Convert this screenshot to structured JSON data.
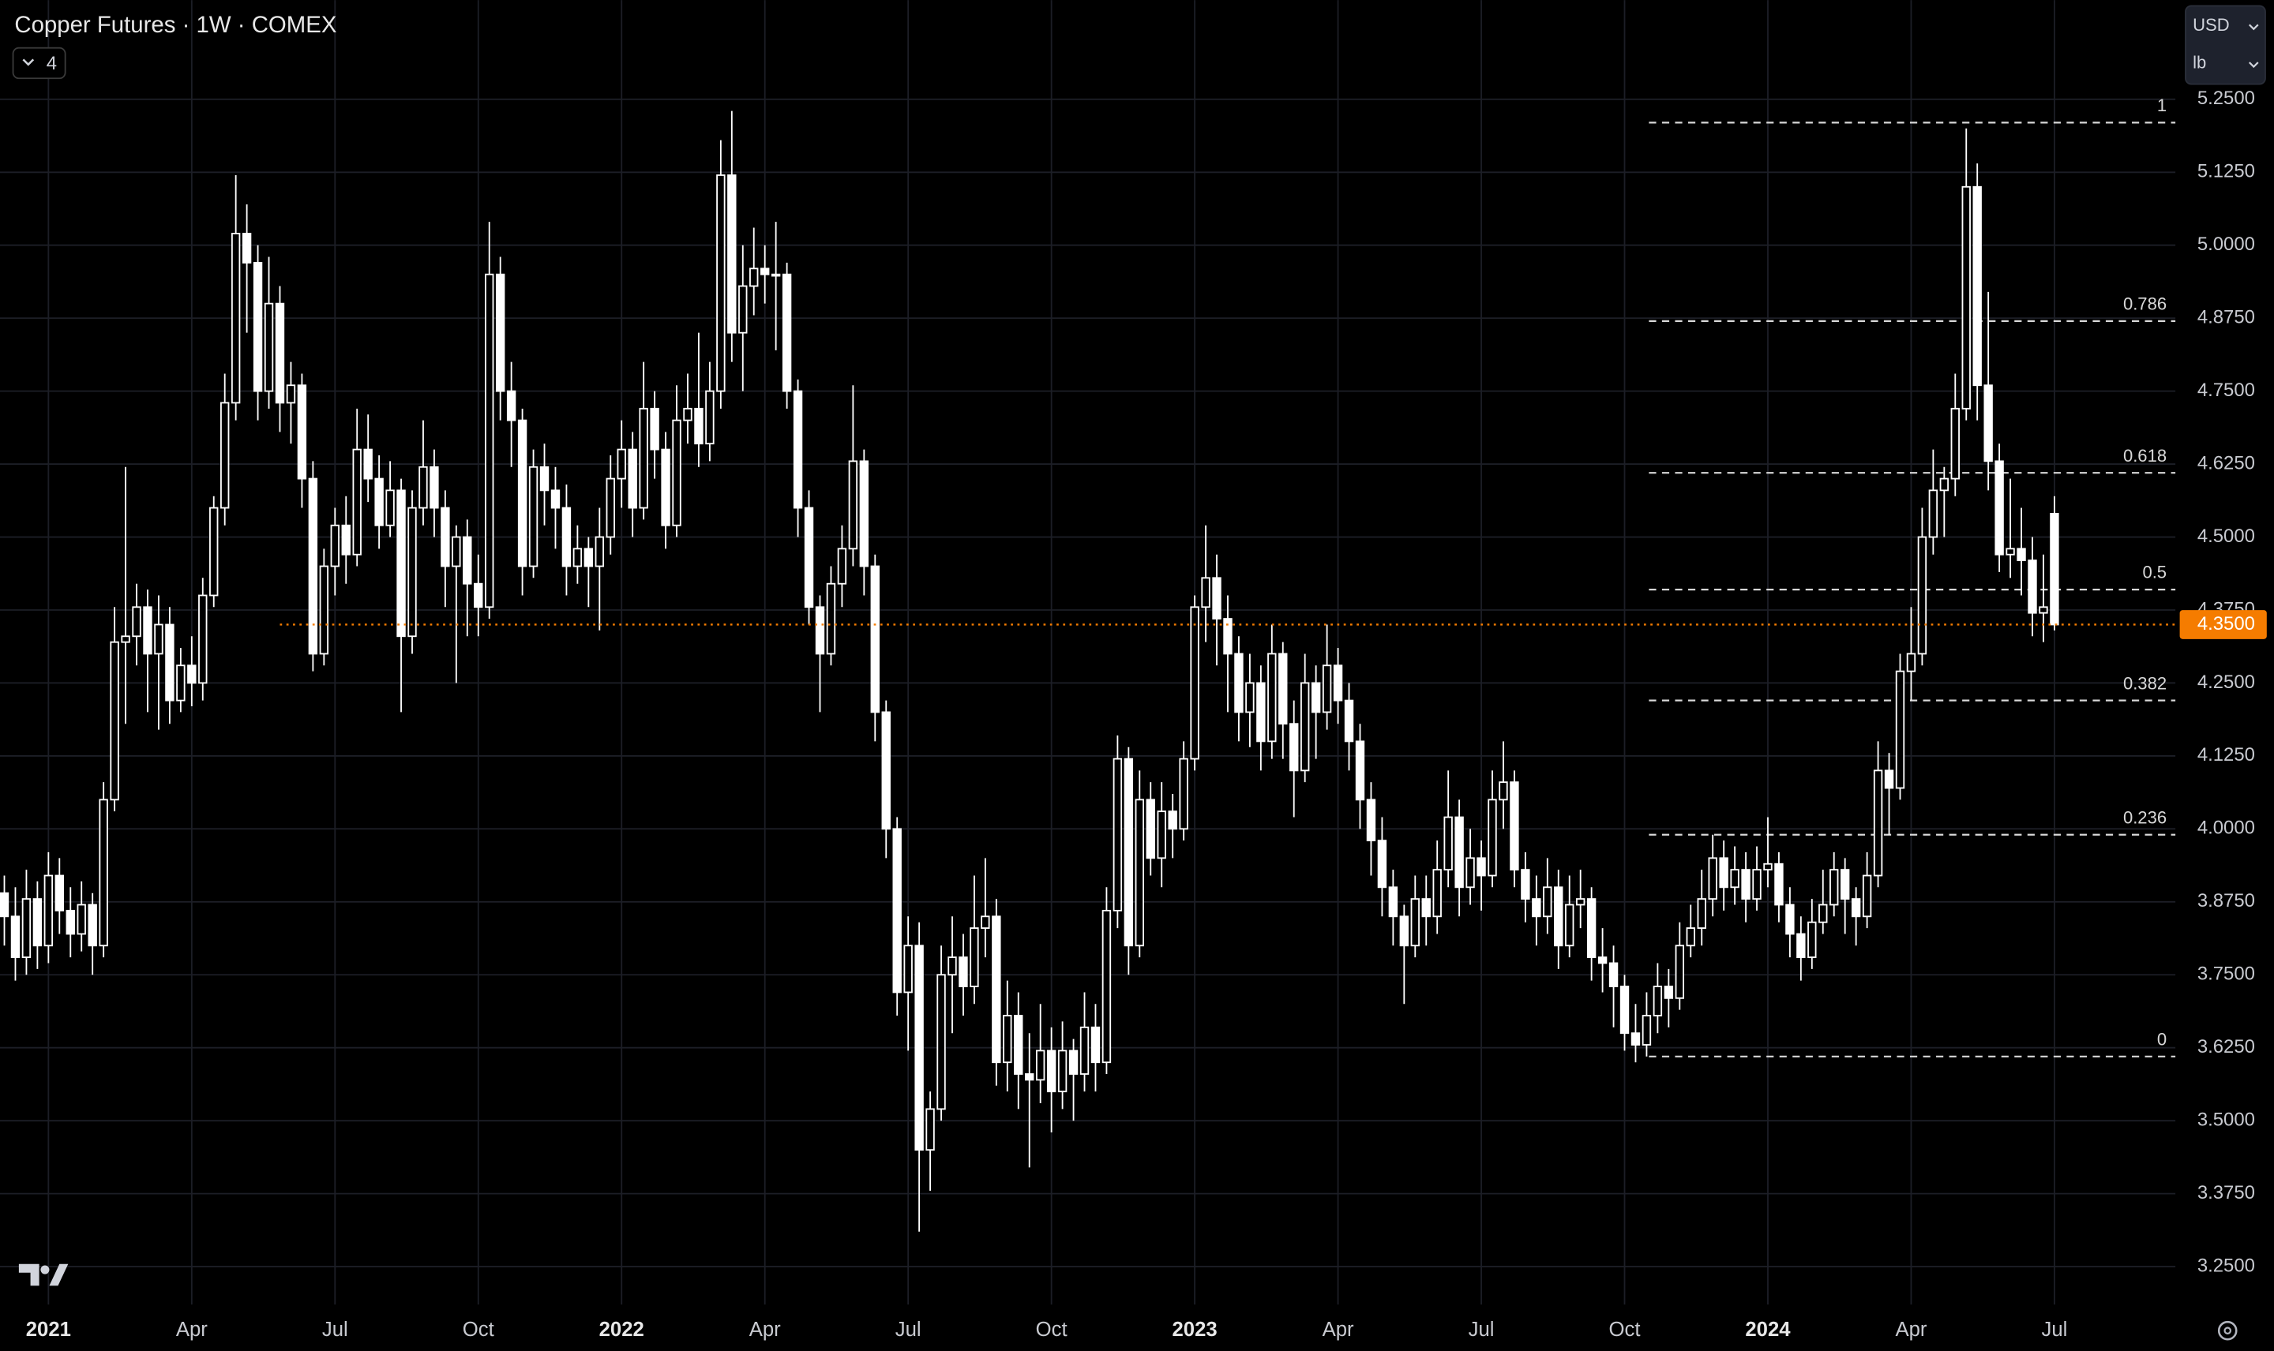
{
  "chart_data": {
    "type": "candlestick",
    "title": "Copper Futures · 1W · COMEX",
    "indicator_count": "4",
    "currency": "USD",
    "unit": "lb",
    "ylim": [
      3.185,
      5.42
    ],
    "yticks": [
      {
        "value": 5.25,
        "label": "5.2500"
      },
      {
        "value": 5.125,
        "label": "5.1250"
      },
      {
        "value": 5,
        "label": "5.0000"
      },
      {
        "value": 4.875,
        "label": "4.8750"
      },
      {
        "value": 4.75,
        "label": "4.7500"
      },
      {
        "value": 4.625,
        "label": "4.6250"
      },
      {
        "value": 4.5,
        "label": "4.5000"
      },
      {
        "value": 4.375,
        "label": "4.3750"
      },
      {
        "value": 4.25,
        "label": "4.2500"
      },
      {
        "value": 4.125,
        "label": "4.1250"
      },
      {
        "value": 4,
        "label": "4.0000"
      },
      {
        "value": 3.875,
        "label": "3.8750"
      },
      {
        "value": 3.75,
        "label": "3.7500"
      },
      {
        "value": 3.625,
        "label": "3.6250"
      },
      {
        "value": 3.5,
        "label": "3.5000"
      },
      {
        "value": 3.375,
        "label": "3.3750"
      },
      {
        "value": 3.25,
        "label": "3.2500"
      }
    ],
    "xticks": [
      {
        "value": 4,
        "label": "2021"
      },
      {
        "value": 17,
        "label": "Apr"
      },
      {
        "value": 30,
        "label": "Jul"
      },
      {
        "value": 43,
        "label": "Oct"
      },
      {
        "value": 56,
        "label": "2022"
      },
      {
        "value": 69,
        "label": "Apr"
      },
      {
        "value": 82,
        "label": "Jul"
      },
      {
        "value": 95,
        "label": "Oct"
      },
      {
        "value": 108,
        "label": "2023"
      },
      {
        "value": 121,
        "label": "Apr"
      },
      {
        "value": 134,
        "label": "Jul"
      },
      {
        "value": 147,
        "label": "Oct"
      },
      {
        "value": 160,
        "label": "2024"
      },
      {
        "value": 173,
        "label": "Apr"
      },
      {
        "value": 186,
        "label": "Jul"
      }
    ],
    "grid": true,
    "candle_color": "#ffffff",
    "last_price": {
      "value": 4.35,
      "label": "4.3500",
      "color": "#f57c00"
    },
    "fib_levels": [
      {
        "ratio": 1,
        "price": 5.21
      },
      {
        "ratio": 0.786,
        "price": 4.87
      },
      {
        "ratio": 0.618,
        "price": 4.61
      },
      {
        "ratio": 0.5,
        "price": 4.41
      },
      {
        "ratio": 0.382,
        "price": 4.22
      },
      {
        "ratio": 0.236,
        "price": 3.99
      },
      {
        "ratio": 0,
        "price": 3.61
      }
    ],
    "ohlc": [
      [
        3.89,
        3.92,
        3.8,
        3.85
      ],
      [
        3.85,
        3.9,
        3.74,
        3.78
      ],
      [
        3.78,
        3.93,
        3.75,
        3.88
      ],
      [
        3.88,
        3.91,
        3.76,
        3.8
      ],
      [
        3.8,
        3.96,
        3.77,
        3.92
      ],
      [
        3.92,
        3.95,
        3.82,
        3.86
      ],
      [
        3.86,
        3.9,
        3.78,
        3.82
      ],
      [
        3.82,
        3.91,
        3.79,
        3.87
      ],
      [
        3.87,
        3.89,
        3.75,
        3.8
      ],
      [
        3.8,
        4.08,
        3.78,
        4.05
      ],
      [
        4.05,
        4.38,
        4.03,
        4.32
      ],
      [
        4.32,
        4.62,
        4.18,
        4.33
      ],
      [
        4.33,
        4.42,
        4.28,
        4.38
      ],
      [
        4.38,
        4.41,
        4.2,
        4.3
      ],
      [
        4.3,
        4.4,
        4.17,
        4.35
      ],
      [
        4.35,
        4.38,
        4.18,
        4.22
      ],
      [
        4.22,
        4.31,
        4.2,
        4.28
      ],
      [
        4.28,
        4.33,
        4.21,
        4.25
      ],
      [
        4.25,
        4.43,
        4.22,
        4.4
      ],
      [
        4.4,
        4.57,
        4.38,
        4.55
      ],
      [
        4.55,
        4.78,
        4.52,
        4.73
      ],
      [
        4.73,
        5.12,
        4.7,
        5.02
      ],
      [
        5.02,
        5.07,
        4.85,
        4.97
      ],
      [
        4.97,
        5.0,
        4.7,
        4.75
      ],
      [
        4.75,
        4.98,
        4.72,
        4.9
      ],
      [
        4.9,
        4.93,
        4.68,
        4.73
      ],
      [
        4.73,
        4.8,
        4.66,
        4.76
      ],
      [
        4.76,
        4.78,
        4.55,
        4.6
      ],
      [
        4.6,
        4.63,
        4.27,
        4.3
      ],
      [
        4.3,
        4.48,
        4.28,
        4.45
      ],
      [
        4.45,
        4.55,
        4.4,
        4.52
      ],
      [
        4.52,
        4.57,
        4.42,
        4.47
      ],
      [
        4.47,
        4.72,
        4.45,
        4.65
      ],
      [
        4.65,
        4.71,
        4.56,
        4.6
      ],
      [
        4.6,
        4.64,
        4.48,
        4.52
      ],
      [
        4.52,
        4.63,
        4.5,
        4.58
      ],
      [
        4.58,
        4.6,
        4.2,
        4.33
      ],
      [
        4.33,
        4.58,
        4.3,
        4.55
      ],
      [
        4.55,
        4.7,
        4.52,
        4.62
      ],
      [
        4.62,
        4.65,
        4.5,
        4.55
      ],
      [
        4.55,
        4.58,
        4.38,
        4.45
      ],
      [
        4.45,
        4.52,
        4.25,
        4.5
      ],
      [
        4.5,
        4.53,
        4.33,
        4.42
      ],
      [
        4.42,
        4.47,
        4.33,
        4.38
      ],
      [
        4.38,
        5.04,
        4.36,
        4.95
      ],
      [
        4.95,
        4.98,
        4.7,
        4.75
      ],
      [
        4.75,
        4.8,
        4.62,
        4.7
      ],
      [
        4.7,
        4.72,
        4.4,
        4.45
      ],
      [
        4.45,
        4.65,
        4.43,
        4.62
      ],
      [
        4.62,
        4.66,
        4.52,
        4.58
      ],
      [
        4.58,
        4.62,
        4.48,
        4.55
      ],
      [
        4.55,
        4.59,
        4.4,
        4.45
      ],
      [
        4.45,
        4.52,
        4.42,
        4.48
      ],
      [
        4.48,
        4.5,
        4.38,
        4.45
      ],
      [
        4.45,
        4.55,
        4.34,
        4.5
      ],
      [
        4.5,
        4.64,
        4.47,
        4.6
      ],
      [
        4.6,
        4.7,
        4.55,
        4.65
      ],
      [
        4.65,
        4.68,
        4.5,
        4.55
      ],
      [
        4.55,
        4.8,
        4.53,
        4.72
      ],
      [
        4.72,
        4.75,
        4.6,
        4.65
      ],
      [
        4.65,
        4.68,
        4.48,
        4.52
      ],
      [
        4.52,
        4.76,
        4.5,
        4.7
      ],
      [
        4.7,
        4.78,
        4.66,
        4.72
      ],
      [
        4.72,
        4.85,
        4.62,
        4.66
      ],
      [
        4.66,
        4.8,
        4.63,
        4.75
      ],
      [
        4.75,
        5.18,
        4.72,
        5.12
      ],
      [
        5.12,
        5.23,
        4.8,
        4.85
      ],
      [
        4.85,
        5.0,
        4.75,
        4.93
      ],
      [
        4.93,
        5.03,
        4.88,
        4.96
      ],
      [
        4.96,
        5.0,
        4.9,
        4.95
      ],
      [
        4.95,
        5.04,
        4.82,
        4.95
      ],
      [
        4.95,
        4.97,
        4.72,
        4.75
      ],
      [
        4.75,
        4.77,
        4.5,
        4.55
      ],
      [
        4.55,
        4.58,
        4.35,
        4.38
      ],
      [
        4.38,
        4.4,
        4.2,
        4.3
      ],
      [
        4.3,
        4.45,
        4.28,
        4.42
      ],
      [
        4.42,
        4.52,
        4.38,
        4.48
      ],
      [
        4.48,
        4.76,
        4.45,
        4.63
      ],
      [
        4.63,
        4.65,
        4.4,
        4.45
      ],
      [
        4.45,
        4.47,
        4.15,
        4.2
      ],
      [
        4.2,
        4.22,
        3.95,
        4.0
      ],
      [
        4.0,
        4.02,
        3.68,
        3.72
      ],
      [
        3.72,
        3.85,
        3.62,
        3.8
      ],
      [
        3.8,
        3.84,
        3.31,
        3.45
      ],
      [
        3.45,
        3.55,
        3.38,
        3.52
      ],
      [
        3.52,
        3.8,
        3.5,
        3.75
      ],
      [
        3.75,
        3.85,
        3.65,
        3.78
      ],
      [
        3.78,
        3.82,
        3.68,
        3.73
      ],
      [
        3.73,
        3.92,
        3.7,
        3.83
      ],
      [
        3.83,
        3.95,
        3.78,
        3.85
      ],
      [
        3.85,
        3.88,
        3.56,
        3.6
      ],
      [
        3.6,
        3.74,
        3.55,
        3.68
      ],
      [
        3.68,
        3.72,
        3.52,
        3.58
      ],
      [
        3.58,
        3.65,
        3.42,
        3.57
      ],
      [
        3.57,
        3.7,
        3.53,
        3.62
      ],
      [
        3.62,
        3.66,
        3.48,
        3.55
      ],
      [
        3.55,
        3.67,
        3.52,
        3.62
      ],
      [
        3.62,
        3.64,
        3.5,
        3.58
      ],
      [
        3.58,
        3.72,
        3.55,
        3.66
      ],
      [
        3.66,
        3.7,
        3.55,
        3.6
      ],
      [
        3.6,
        3.9,
        3.58,
        3.86
      ],
      [
        3.86,
        4.16,
        3.83,
        4.12
      ],
      [
        4.12,
        4.14,
        3.75,
        3.8
      ],
      [
        3.8,
        4.1,
        3.78,
        4.05
      ],
      [
        4.05,
        4.08,
        3.92,
        3.95
      ],
      [
        3.95,
        4.08,
        3.9,
        4.03
      ],
      [
        4.03,
        4.06,
        3.95,
        4.0
      ],
      [
        4.0,
        4.15,
        3.98,
        4.12
      ],
      [
        4.12,
        4.4,
        4.1,
        4.38
      ],
      [
        4.38,
        4.52,
        4.32,
        4.43
      ],
      [
        4.43,
        4.47,
        4.28,
        4.36
      ],
      [
        4.36,
        4.4,
        4.2,
        4.3
      ],
      [
        4.3,
        4.33,
        4.15,
        4.2
      ],
      [
        4.2,
        4.3,
        4.14,
        4.25
      ],
      [
        4.25,
        4.28,
        4.1,
        4.15
      ],
      [
        4.15,
        4.35,
        4.12,
        4.3
      ],
      [
        4.3,
        4.32,
        4.12,
        4.18
      ],
      [
        4.18,
        4.22,
        4.02,
        4.1
      ],
      [
        4.1,
        4.3,
        4.08,
        4.25
      ],
      [
        4.25,
        4.28,
        4.12,
        4.2
      ],
      [
        4.2,
        4.35,
        4.17,
        4.28
      ],
      [
        4.28,
        4.31,
        4.18,
        4.22
      ],
      [
        4.22,
        4.25,
        4.1,
        4.15
      ],
      [
        4.15,
        4.18,
        4.0,
        4.05
      ],
      [
        4.05,
        4.08,
        3.92,
        3.98
      ],
      [
        3.98,
        4.02,
        3.85,
        3.9
      ],
      [
        3.9,
        3.93,
        3.8,
        3.85
      ],
      [
        3.85,
        3.87,
        3.7,
        3.8
      ],
      [
        3.8,
        3.92,
        3.78,
        3.88
      ],
      [
        3.88,
        3.92,
        3.8,
        3.85
      ],
      [
        3.85,
        3.98,
        3.82,
        3.93
      ],
      [
        3.93,
        4.1,
        3.9,
        4.02
      ],
      [
        4.02,
        4.05,
        3.85,
        3.9
      ],
      [
        3.9,
        4.0,
        3.87,
        3.95
      ],
      [
        3.95,
        3.98,
        3.86,
        3.92
      ],
      [
        3.92,
        4.1,
        3.9,
        4.05
      ],
      [
        4.05,
        4.15,
        4.0,
        4.08
      ],
      [
        4.08,
        4.1,
        3.9,
        3.93
      ],
      [
        3.93,
        3.96,
        3.84,
        3.88
      ],
      [
        3.88,
        3.92,
        3.8,
        3.85
      ],
      [
        3.85,
        3.95,
        3.82,
        3.9
      ],
      [
        3.9,
        3.93,
        3.76,
        3.8
      ],
      [
        3.8,
        3.92,
        3.78,
        3.87
      ],
      [
        3.87,
        3.93,
        3.83,
        3.88
      ],
      [
        3.88,
        3.9,
        3.74,
        3.78
      ],
      [
        3.78,
        3.83,
        3.72,
        3.77
      ],
      [
        3.77,
        3.8,
        3.66,
        3.73
      ],
      [
        3.73,
        3.75,
        3.62,
        3.65
      ],
      [
        3.65,
        3.7,
        3.6,
        3.63
      ],
      [
        3.63,
        3.72,
        3.61,
        3.68
      ],
      [
        3.68,
        3.77,
        3.65,
        3.73
      ],
      [
        3.73,
        3.76,
        3.66,
        3.71
      ],
      [
        3.71,
        3.84,
        3.69,
        3.8
      ],
      [
        3.8,
        3.87,
        3.78,
        3.83
      ],
      [
        3.83,
        3.93,
        3.8,
        3.88
      ],
      [
        3.88,
        3.99,
        3.85,
        3.95
      ],
      [
        3.95,
        3.98,
        3.86,
        3.9
      ],
      [
        3.9,
        3.97,
        3.87,
        3.93
      ],
      [
        3.93,
        3.96,
        3.84,
        3.88
      ],
      [
        3.88,
        3.97,
        3.86,
        3.93
      ],
      [
        3.93,
        4.02,
        3.9,
        3.94
      ],
      [
        3.94,
        3.96,
        3.84,
        3.87
      ],
      [
        3.87,
        3.9,
        3.78,
        3.82
      ],
      [
        3.82,
        3.85,
        3.74,
        3.78
      ],
      [
        3.78,
        3.88,
        3.76,
        3.84
      ],
      [
        3.84,
        3.93,
        3.82,
        3.87
      ],
      [
        3.87,
        3.96,
        3.85,
        3.93
      ],
      [
        3.93,
        3.95,
        3.82,
        3.88
      ],
      [
        3.88,
        3.9,
        3.8,
        3.85
      ],
      [
        3.85,
        3.96,
        3.83,
        3.92
      ],
      [
        3.92,
        4.15,
        3.9,
        4.1
      ],
      [
        4.1,
        4.13,
        3.99,
        4.07
      ],
      [
        4.07,
        4.3,
        4.05,
        4.27
      ],
      [
        4.27,
        4.38,
        4.22,
        4.3
      ],
      [
        4.3,
        4.55,
        4.28,
        4.5
      ],
      [
        4.5,
        4.65,
        4.47,
        4.58
      ],
      [
        4.58,
        4.62,
        4.5,
        4.6
      ],
      [
        4.6,
        4.78,
        4.57,
        4.72
      ],
      [
        4.72,
        5.2,
        4.7,
        5.1
      ],
      [
        5.1,
        5.14,
        4.7,
        4.76
      ],
      [
        4.76,
        4.92,
        4.58,
        4.63
      ],
      [
        4.63,
        4.66,
        4.44,
        4.47
      ],
      [
        4.47,
        4.6,
        4.43,
        4.48
      ],
      [
        4.48,
        4.55,
        4.4,
        4.46
      ],
      [
        4.46,
        4.5,
        4.33,
        4.37
      ],
      [
        4.37,
        4.47,
        4.32,
        4.38
      ],
      [
        4.54,
        4.57,
        4.34,
        4.35
      ]
    ]
  }
}
